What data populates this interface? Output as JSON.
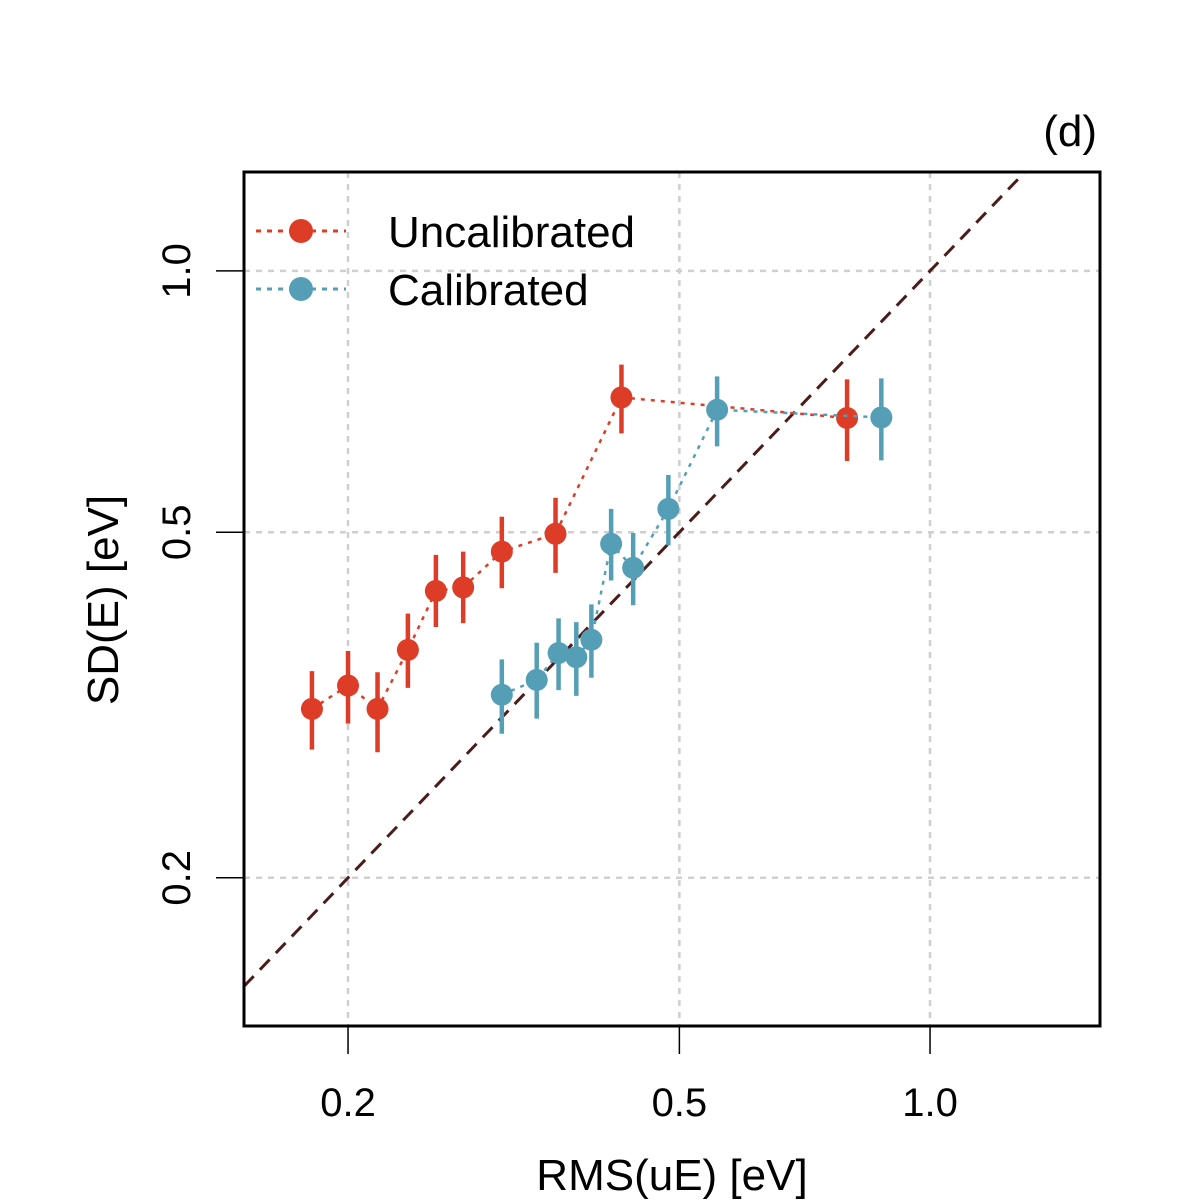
{
  "chart_data": {
    "type": "scatter",
    "panel_label": "(d)",
    "xlabel": "RMS(uE) [eV]",
    "ylabel": "SD(E) [eV]",
    "xscale": "log",
    "yscale": "log",
    "xlim": [
      0.15,
      1.6
    ],
    "ylim": [
      0.135,
      1.3
    ],
    "xticks": [
      0.2,
      0.5,
      1.0
    ],
    "xtick_labels": [
      "0.2",
      "0.5",
      "1.0"
    ],
    "yticks": [
      0.2,
      0.5,
      1.0
    ],
    "ytick_labels": [
      "0.2",
      "0.5",
      "1.0"
    ],
    "grid": true,
    "identity_line": true,
    "legend": {
      "position": "top-left",
      "entries": [
        "Uncalibrated",
        "Calibrated"
      ]
    },
    "series": [
      {
        "name": "Uncalibrated",
        "color": "#DD3D27",
        "points": [
          {
            "x": 0.181,
            "y": 0.313,
            "lo": 0.281,
            "hi": 0.346
          },
          {
            "x": 0.2,
            "y": 0.333,
            "lo": 0.301,
            "hi": 0.365
          },
          {
            "x": 0.217,
            "y": 0.313,
            "lo": 0.279,
            "hi": 0.345
          },
          {
            "x": 0.236,
            "y": 0.366,
            "lo": 0.331,
            "hi": 0.403
          },
          {
            "x": 0.255,
            "y": 0.428,
            "lo": 0.389,
            "hi": 0.471
          },
          {
            "x": 0.275,
            "y": 0.432,
            "lo": 0.393,
            "hi": 0.475
          },
          {
            "x": 0.306,
            "y": 0.475,
            "lo": 0.431,
            "hi": 0.521
          },
          {
            "x": 0.355,
            "y": 0.498,
            "lo": 0.449,
            "hi": 0.548
          },
          {
            "x": 0.426,
            "y": 0.715,
            "lo": 0.65,
            "hi": 0.78
          },
          {
            "x": 0.795,
            "y": 0.677,
            "lo": 0.604,
            "hi": 0.75
          }
        ]
      },
      {
        "name": "Calibrated",
        "color": "#559FB6",
        "points": [
          {
            "x": 0.306,
            "y": 0.325,
            "lo": 0.293,
            "hi": 0.357
          },
          {
            "x": 0.337,
            "y": 0.338,
            "lo": 0.305,
            "hi": 0.373
          },
          {
            "x": 0.358,
            "y": 0.363,
            "lo": 0.329,
            "hi": 0.398
          },
          {
            "x": 0.376,
            "y": 0.359,
            "lo": 0.324,
            "hi": 0.394
          },
          {
            "x": 0.392,
            "y": 0.376,
            "lo": 0.34,
            "hi": 0.413
          },
          {
            "x": 0.414,
            "y": 0.485,
            "lo": 0.44,
            "hi": 0.532
          },
          {
            "x": 0.44,
            "y": 0.455,
            "lo": 0.412,
            "hi": 0.499
          },
          {
            "x": 0.485,
            "y": 0.532,
            "lo": 0.483,
            "hi": 0.582
          },
          {
            "x": 0.555,
            "y": 0.692,
            "lo": 0.628,
            "hi": 0.756
          },
          {
            "x": 0.874,
            "y": 0.678,
            "lo": 0.605,
            "hi": 0.752
          }
        ]
      }
    ]
  }
}
